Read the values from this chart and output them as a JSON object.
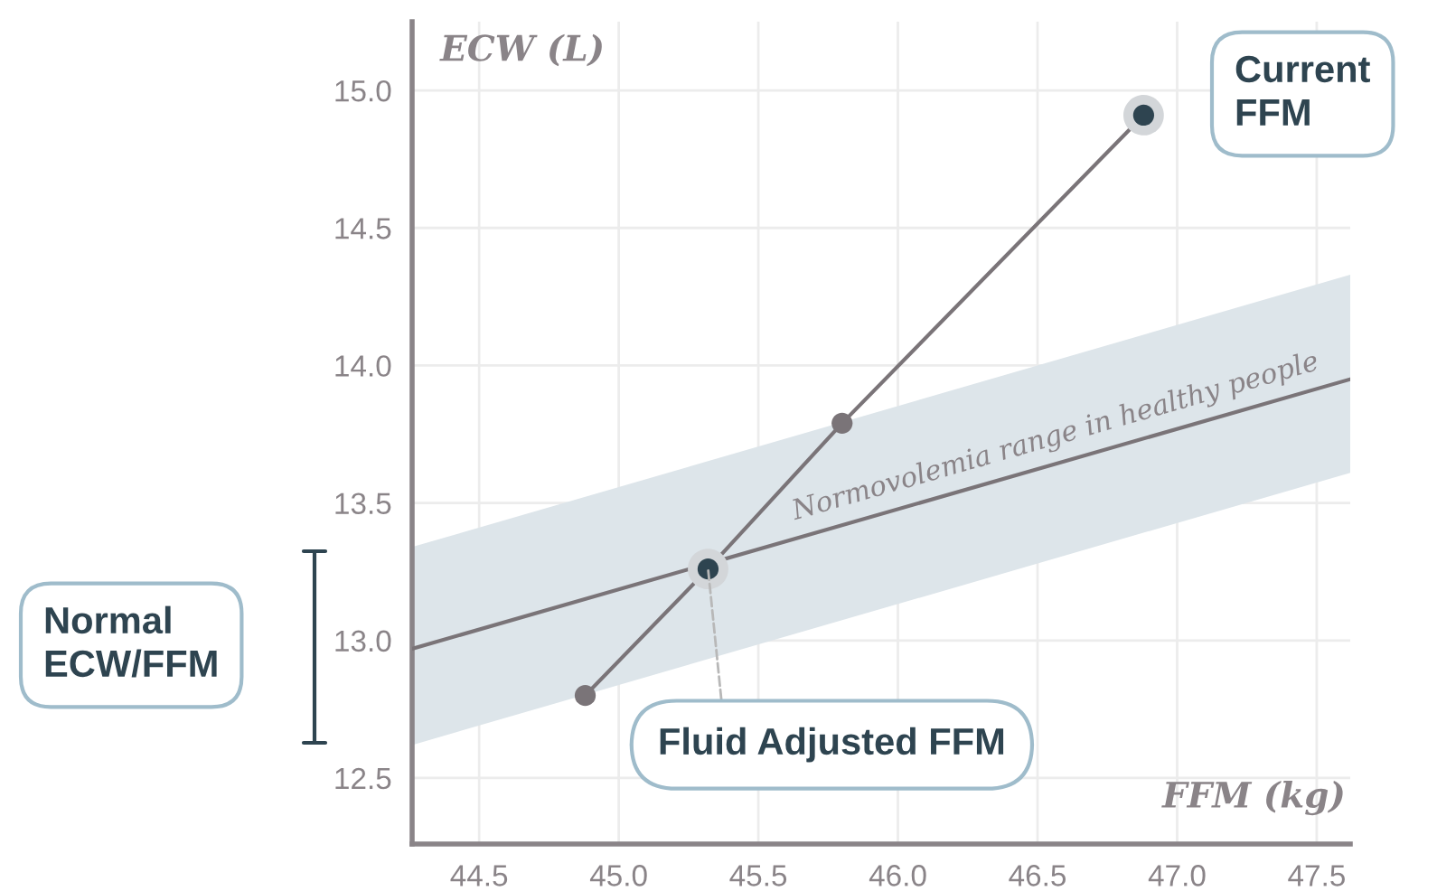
{
  "chart_data": {
    "type": "line",
    "xlabel": "FFM (kg)",
    "ylabel": "ECW (L)",
    "xlim": [
      44.26,
      47.62
    ],
    "ylim": [
      12.26,
      15.25
    ],
    "xticks": [
      {
        "value": 44.5,
        "label": "44.5"
      },
      {
        "value": 45.0,
        "label": "45.0"
      },
      {
        "value": 45.5,
        "label": "45.5"
      },
      {
        "value": 46.0,
        "label": "46.0"
      },
      {
        "value": 46.5,
        "label": "46.5"
      },
      {
        "value": 47.0,
        "label": "47.0"
      },
      {
        "value": 47.5,
        "label": "47.5"
      }
    ],
    "yticks": [
      {
        "value": 12.5,
        "label": "12.5"
      },
      {
        "value": 13.0,
        "label": "13.0"
      },
      {
        "value": 13.5,
        "label": "13.5"
      },
      {
        "value": 14.0,
        "label": "14.0"
      },
      {
        "value": 14.5,
        "label": "14.5"
      },
      {
        "value": 15.0,
        "label": "15.0"
      }
    ],
    "grid": true,
    "series": [
      {
        "name": "Normovolemia range in healthy people",
        "color": "#7a7478",
        "x": [
          44.26,
          47.62
        ],
        "values": [
          12.97,
          13.95
        ],
        "lower": [
          12.62,
          13.61
        ],
        "upper": [
          13.34,
          14.33
        ],
        "marker": "none"
      },
      {
        "color": "#7a7478",
        "x": [
          44.88,
          45.32,
          45.8,
          46.88
        ],
        "values": [
          12.8,
          13.26,
          13.79,
          14.91
        ],
        "colors": [
          "#7a7478",
          "#2e4450",
          "#7a7478",
          "#2e4450"
        ],
        "marker": "circle"
      }
    ],
    "annotations": [
      "Current FFM",
      {
        "text": "Fluid Adjusted FFM",
        "x": 45.32,
        "y": 13.26
      },
      "Normal ECW/FFM"
    ]
  }
}
